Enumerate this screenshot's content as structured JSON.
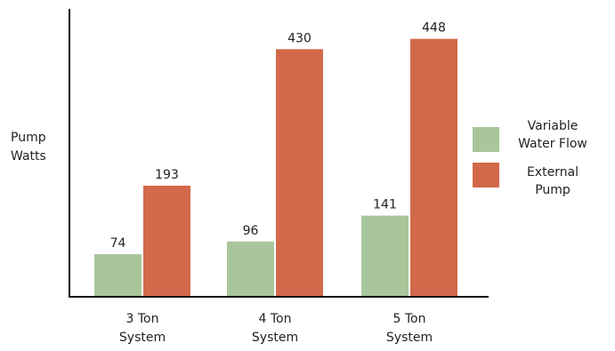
{
  "chart_data": {
    "type": "bar",
    "title": "",
    "xlabel": "",
    "ylabel": [
      "Pump",
      "Watts"
    ],
    "categories": [
      [
        "3 Ton",
        "System"
      ],
      [
        "4 Ton",
        "System"
      ],
      [
        "5 Ton",
        "System"
      ]
    ],
    "ylim": [
      0,
      500
    ],
    "grid": false,
    "legend_position": "right",
    "series": [
      {
        "name": [
          "Variable",
          "Water Flow"
        ],
        "color": "#a8c69a",
        "values": [
          74,
          96,
          141
        ]
      },
      {
        "name": [
          "External",
          "Pump"
        ],
        "color": "#d2694a",
        "values": [
          193,
          430,
          448
        ]
      }
    ]
  }
}
